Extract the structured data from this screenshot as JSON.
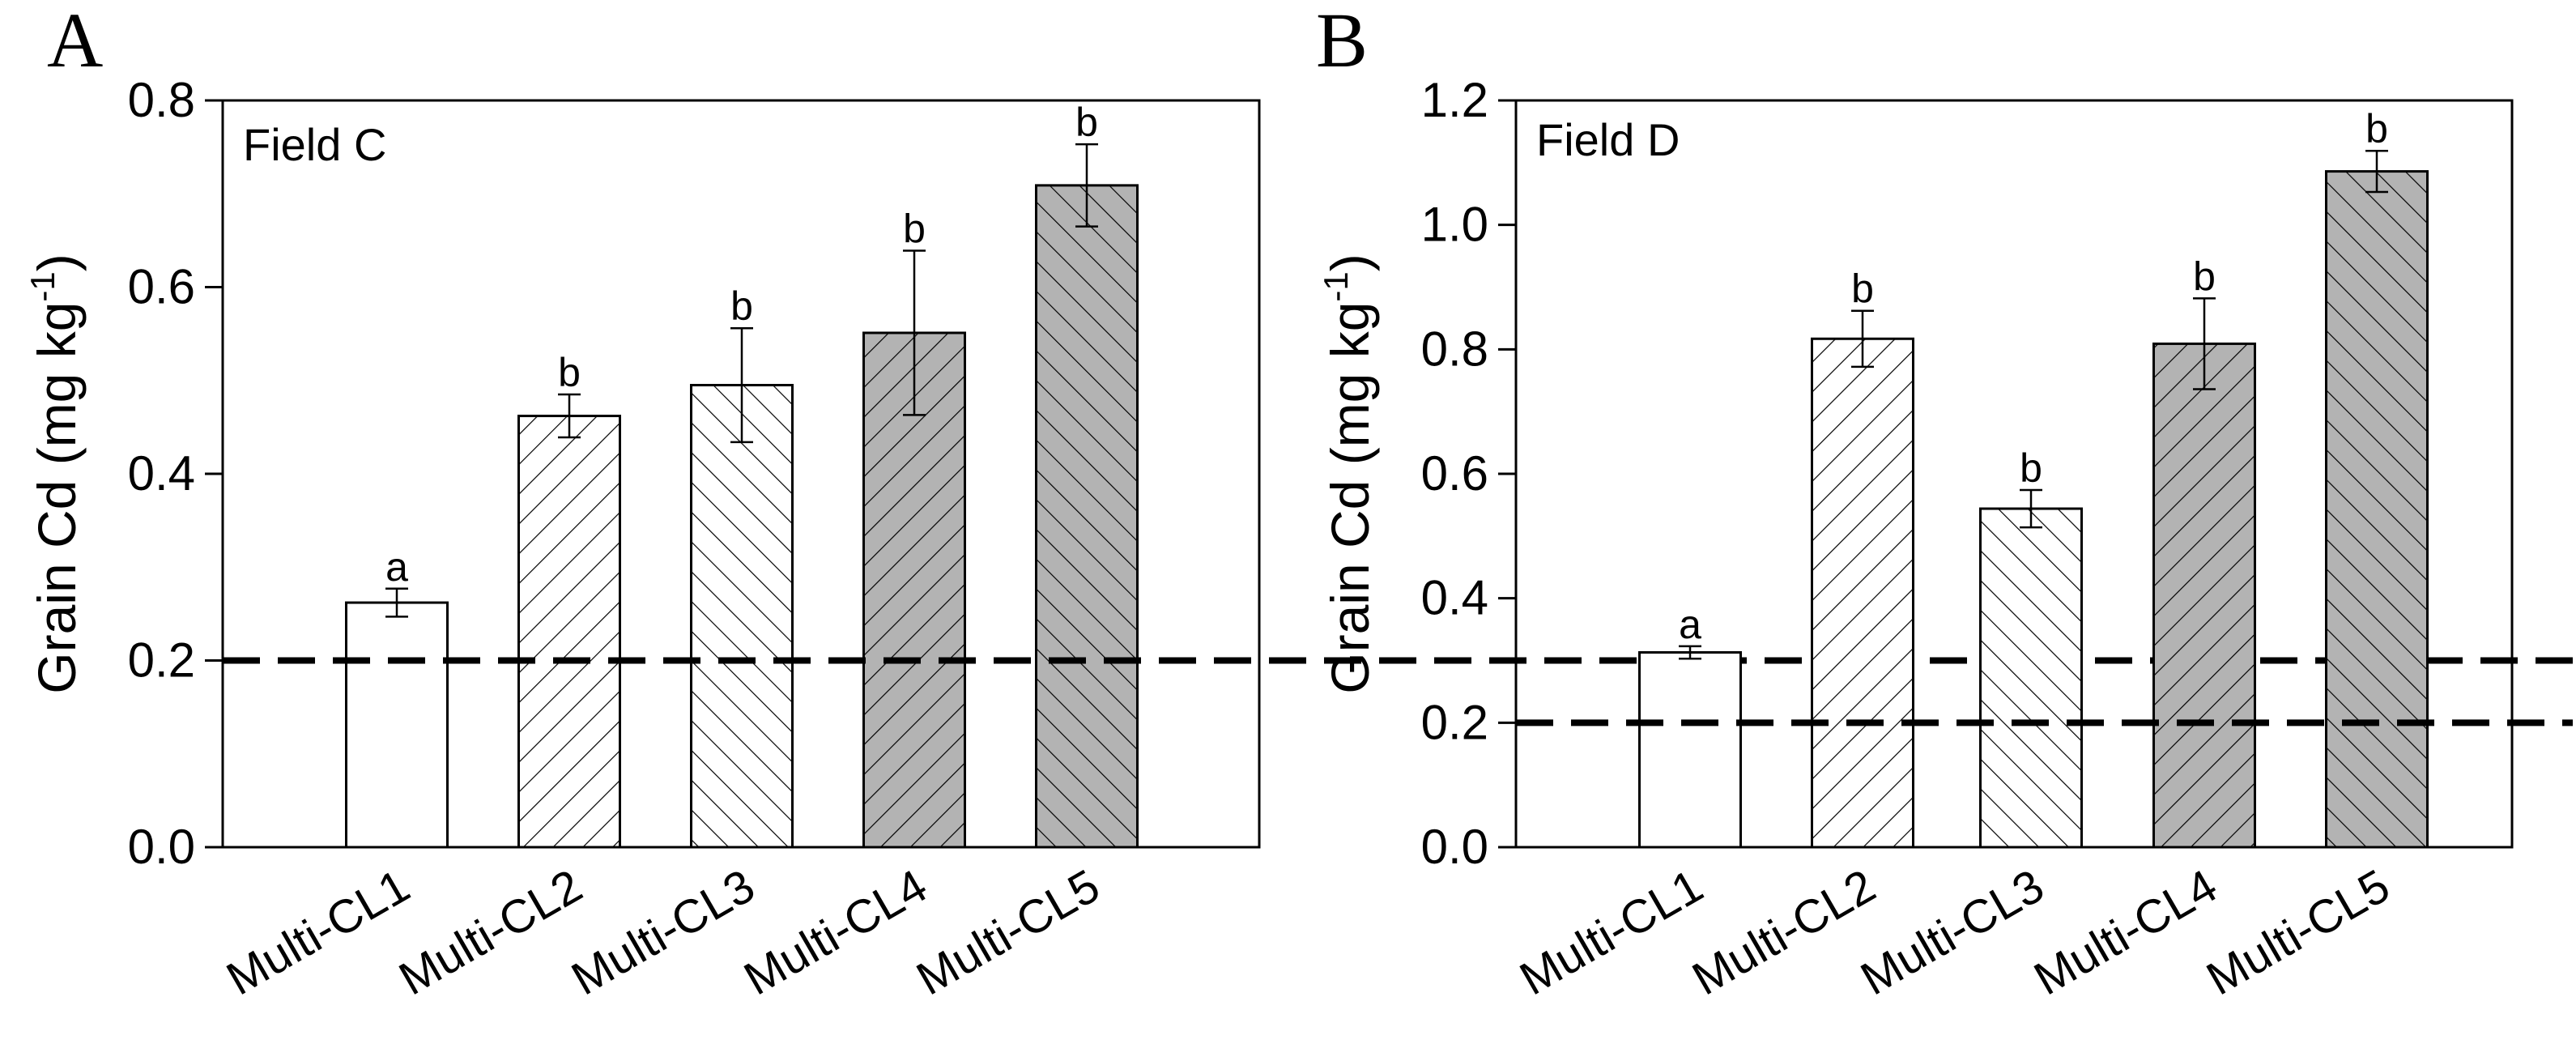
{
  "figure": {
    "background": "#ffffff"
  },
  "chart_data": [
    {
      "panel_letter": "A",
      "type": "bar",
      "title": "Field C",
      "xlabel": "",
      "ylabel": {
        "main": "Grain Cd (mg kg",
        "sup": "-1",
        "close": ")"
      },
      "categories": [
        "Multi-CL1",
        "Multi-CL2",
        "Multi-CL3",
        "Multi-CL4",
        "Multi-CL5"
      ],
      "values": [
        0.262,
        0.462,
        0.495,
        0.551,
        0.709
      ],
      "errors": [
        0.015,
        0.023,
        0.061,
        0.088,
        0.044
      ],
      "significance": [
        "a",
        "b",
        "b",
        "b",
        "b"
      ],
      "fills": [
        "#ffffff",
        "#ffffff",
        "#ffffff",
        "#b3b3b3",
        "#b3b3b3"
      ],
      "hatches": [
        "none",
        "forward",
        "backward",
        "forward",
        "backward"
      ],
      "ylim": [
        0,
        0.8
      ],
      "yticks": [
        0.0,
        0.2,
        0.4,
        0.6,
        0.8
      ],
      "ytick_labels": [
        "0.0",
        "0.2",
        "0.4",
        "0.6",
        "0.8"
      ],
      "reference_line": {
        "value": 0.2,
        "style": "dashed"
      },
      "grid": false
    },
    {
      "panel_letter": "B",
      "type": "bar",
      "title": "Field D",
      "xlabel": "",
      "ylabel": {
        "main": "Grain Cd (mg kg",
        "sup": "-1",
        "close": ")"
      },
      "categories": [
        "Multi-CL1",
        "Multi-CL2",
        "Multi-CL3",
        "Multi-CL4",
        "Multi-CL5"
      ],
      "values": [
        0.313,
        0.817,
        0.544,
        0.809,
        1.086
      ],
      "errors": [
        0.01,
        0.045,
        0.03,
        0.073,
        0.033
      ],
      "significance": [
        "a",
        "b",
        "b",
        "b",
        "b"
      ],
      "fills": [
        "#ffffff",
        "#ffffff",
        "#ffffff",
        "#b3b3b3",
        "#b3b3b3"
      ],
      "hatches": [
        "none",
        "forward",
        "backward",
        "forward",
        "backward"
      ],
      "ylim": [
        0,
        1.2
      ],
      "yticks": [
        0.0,
        0.2,
        0.4,
        0.6,
        0.8,
        1.0,
        1.2
      ],
      "ytick_labels": [
        "0.0",
        "0.2",
        "0.4",
        "0.6",
        "0.8",
        "1.0",
        "1.2"
      ],
      "reference_line": {
        "value": 0.2,
        "style": "dashed"
      },
      "grid": false
    }
  ]
}
